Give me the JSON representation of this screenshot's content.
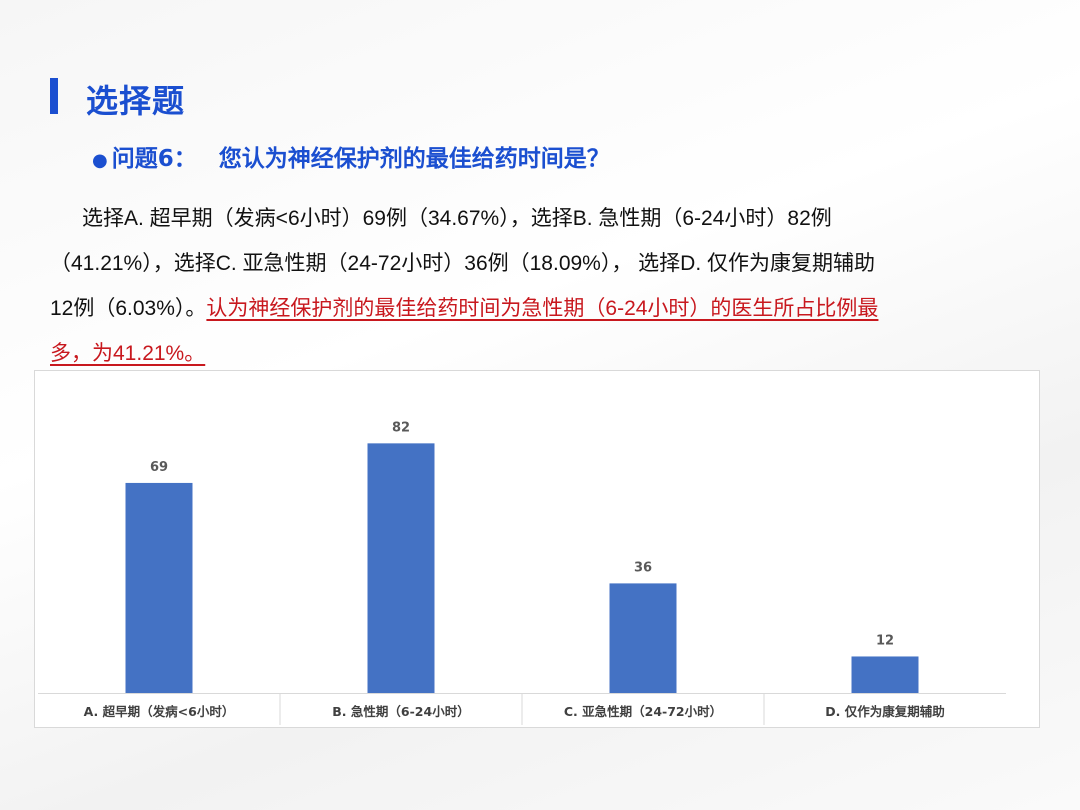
{
  "page": {
    "title": "选择题",
    "question": {
      "bullet": "●",
      "label": "问题6：",
      "text": "您认为神经保护剂的最佳给药时间是？"
    },
    "paragraph": {
      "line1": "选择A. 超早期（发病<6小时）69例（34.67%），选择B. 急性期（6-24小时）82例",
      "line2": "（41.21%），选择C. 亚急性期（24-72小时）36例（18.09%）， 选择D. 仅作为康复期辅助",
      "line3_plain": "12例（6.03%）。",
      "line3_highlight": "认为神经保护剂的最佳给药时间为急性期（6-24小时）的医生所占比例最",
      "line4_highlight": "多，为41.21%。"
    },
    "colors": {
      "title": "#1b4fd0",
      "bar": "#4472c4",
      "highlight_text": "#c8181e"
    }
  },
  "chart_data": {
    "type": "bar",
    "categories": [
      "A. 超早期（发病<6小时）",
      "B. 急性期（6-24小时）",
      "C. 亚急性期（24-72小时）",
      "D. 仅作为康复期辅助"
    ],
    "values": [
      69,
      82,
      36,
      12
    ],
    "title": "",
    "xlabel": "",
    "ylabel": "",
    "ylim": [
      0,
      90
    ],
    "grid": false,
    "legend": "none",
    "data_labels": true
  }
}
